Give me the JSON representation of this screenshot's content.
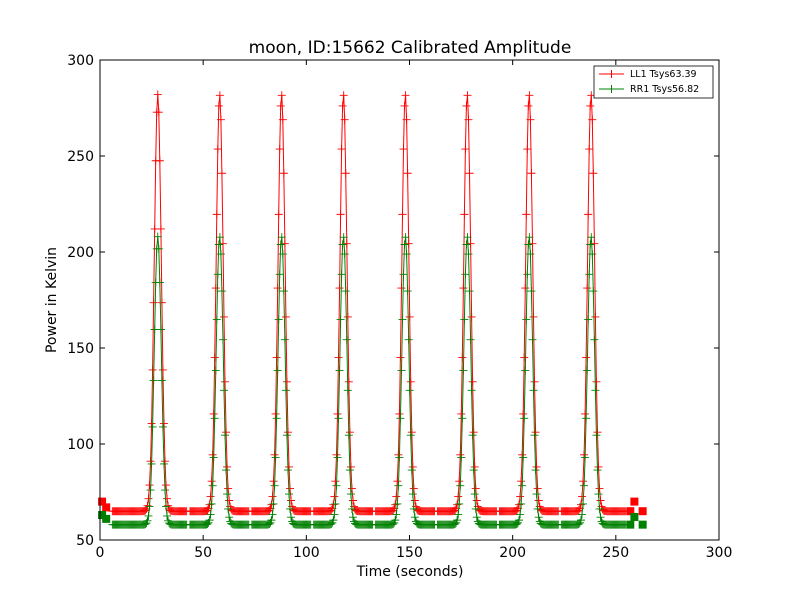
{
  "chart_data": {
    "type": "line",
    "title": "moon, ID:15662 Calibrated Amplitude",
    "xlabel": "Time (seconds)",
    "ylabel": "Power in Kelvin",
    "xlim": [
      0,
      300
    ],
    "ylim": [
      50,
      300
    ],
    "xticks": [
      0,
      50,
      100,
      150,
      200,
      250,
      300
    ],
    "yticks": [
      50,
      100,
      150,
      200,
      250,
      300
    ],
    "grid": false,
    "legend_position": "top-right",
    "marker": "plus",
    "peak_centers": [
      28,
      58,
      88,
      118,
      148,
      178,
      208,
      238
    ],
    "series": [
      {
        "name": "LL1 Tsys63.39",
        "color": "#ff0000",
        "baseline": 65,
        "peak": 282,
        "start_points": [
          {
            "x": 1,
            "y": 70
          },
          {
            "x": 3,
            "y": 67
          }
        ],
        "end_points": [
          {
            "x": 257,
            "y": 65
          },
          {
            "x": 259,
            "y": 70
          },
          {
            "x": 263,
            "y": 65
          }
        ]
      },
      {
        "name": "RR1 Tsys56.82",
        "color": "#008000",
        "baseline": 58,
        "peak": 208,
        "start_points": [
          {
            "x": 1,
            "y": 63
          },
          {
            "x": 3,
            "y": 61
          }
        ],
        "end_points": [
          {
            "x": 257,
            "y": 58
          },
          {
            "x": 259,
            "y": 62
          },
          {
            "x": 263,
            "y": 58
          }
        ]
      }
    ]
  }
}
